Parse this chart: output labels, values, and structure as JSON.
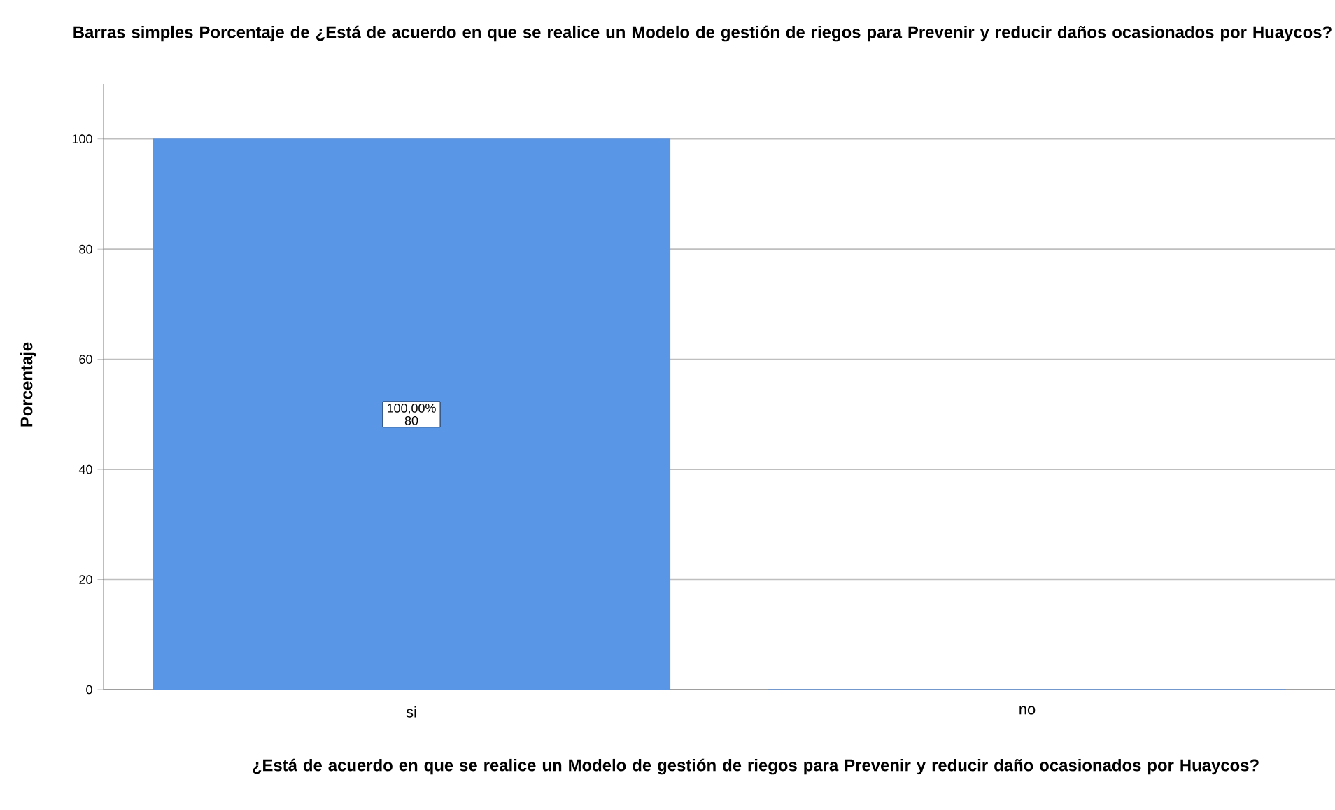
{
  "chart_data": {
    "type": "bar",
    "title": "Barras simples Porcentaje de ¿Está de acuerdo en que se realice un Modelo de gestión de riegos para Prevenir y reducir daños ocasionados por Huaycos?",
    "xlabel": "¿Está de acuerdo en que se realice un Modelo de gestión de riegos para Prevenir y reducir daño ocasionados por Huaycos?",
    "ylabel": "Porcentaje",
    "categories": [
      "si",
      "no"
    ],
    "values": [
      100,
      0
    ],
    "value_labels": [
      "100,00% 80",
      null
    ],
    "color": "#5a96e6",
    "ylim": [
      0,
      110
    ],
    "yticks": [
      0,
      20,
      40,
      60,
      80,
      100
    ],
    "grid": "y"
  }
}
